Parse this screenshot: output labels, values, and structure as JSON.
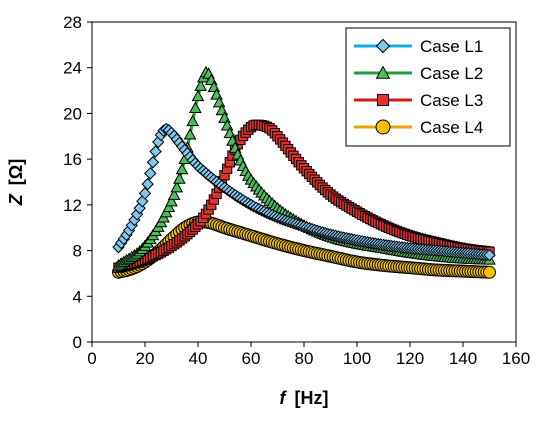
{
  "chart_data": {
    "type": "line",
    "xlabel": {
      "symbol": "f",
      "unit": "[Hz]"
    },
    "ylabel": {
      "symbol": "Z",
      "unit": "[Ω]"
    },
    "xlim": [
      0,
      160
    ],
    "ylim": [
      0,
      28
    ],
    "xticks": [
      "0",
      "20",
      "40",
      "60",
      "80",
      "100",
      "120",
      "140",
      "160"
    ],
    "yticks": [
      "0",
      "4",
      "8",
      "12",
      "16",
      "20",
      "24",
      "28"
    ],
    "grid": false,
    "legend_position": "top-right",
    "series": [
      {
        "name": "Case L1",
        "marker": "diamond",
        "line_color": "#1aa7e6",
        "marker_fill": "#7fc8ee",
        "peak_f": 27.5,
        "peak_z": 18.6,
        "points": [
          [
            10,
            8.3
          ],
          [
            15,
            10.2
          ],
          [
            20,
            13.0
          ],
          [
            25,
            17.5
          ],
          [
            27.5,
            18.6
          ],
          [
            30,
            18.3
          ],
          [
            35,
            16.8
          ],
          [
            40,
            15.4
          ],
          [
            50,
            13.5
          ],
          [
            60,
            12.0
          ],
          [
            70,
            10.9
          ],
          [
            80,
            10.1
          ],
          [
            90,
            9.4
          ],
          [
            100,
            8.9
          ],
          [
            110,
            8.5
          ],
          [
            120,
            8.2
          ],
          [
            130,
            8.0
          ],
          [
            140,
            7.8
          ],
          [
            150,
            7.6
          ]
        ]
      },
      {
        "name": "Case L2",
        "marker": "triangle",
        "line_color": "#1d9e3a",
        "marker_fill": "#4bbf5e",
        "peak_f": 43,
        "peak_z": 23.6,
        "points": [
          [
            10,
            6.7
          ],
          [
            20,
            8.4
          ],
          [
            30,
            12.3
          ],
          [
            35,
            16.0
          ],
          [
            40,
            21.5
          ],
          [
            43,
            23.6
          ],
          [
            45,
            22.9
          ],
          [
            50,
            19.6
          ],
          [
            55,
            16.4
          ],
          [
            60,
            14.2
          ],
          [
            70,
            11.7
          ],
          [
            80,
            10.2
          ],
          [
            90,
            9.2
          ],
          [
            100,
            8.6
          ],
          [
            110,
            8.2
          ],
          [
            120,
            7.8
          ],
          [
            130,
            7.5
          ],
          [
            140,
            7.3
          ],
          [
            150,
            7.2
          ]
        ]
      },
      {
        "name": "Case L3",
        "marker": "square",
        "line_color": "#d11919",
        "marker_fill": "#e03030",
        "peak_f": 63,
        "peak_z": 19.0,
        "points": [
          [
            10,
            6.5
          ],
          [
            20,
            7.2
          ],
          [
            30,
            8.4
          ],
          [
            40,
            10.3
          ],
          [
            45,
            12.0
          ],
          [
            50,
            14.6
          ],
          [
            55,
            17.3
          ],
          [
            60,
            18.8
          ],
          [
            63,
            19.0
          ],
          [
            67,
            18.7
          ],
          [
            70,
            18.0
          ],
          [
            80,
            15.2
          ],
          [
            90,
            12.9
          ],
          [
            100,
            11.4
          ],
          [
            110,
            10.2
          ],
          [
            120,
            9.3
          ],
          [
            130,
            8.7
          ],
          [
            140,
            8.2
          ],
          [
            150,
            7.9
          ]
        ]
      },
      {
        "name": "Case L4",
        "marker": "circle",
        "line_color": "#e8a500",
        "marker_fill": "#f5c000",
        "peak_f": 42,
        "peak_z": 10.5,
        "points": [
          [
            10,
            6.1
          ],
          [
            15,
            6.4
          ],
          [
            20,
            7.0
          ],
          [
            25,
            7.9
          ],
          [
            30,
            9.0
          ],
          [
            35,
            10.0
          ],
          [
            40,
            10.5
          ],
          [
            45,
            10.4
          ],
          [
            50,
            10.0
          ],
          [
            60,
            9.3
          ],
          [
            70,
            8.6
          ],
          [
            80,
            8.0
          ],
          [
            90,
            7.5
          ],
          [
            100,
            7.0
          ],
          [
            110,
            6.7
          ],
          [
            120,
            6.5
          ],
          [
            130,
            6.3
          ],
          [
            140,
            6.2
          ],
          [
            150,
            6.1
          ]
        ]
      }
    ]
  }
}
